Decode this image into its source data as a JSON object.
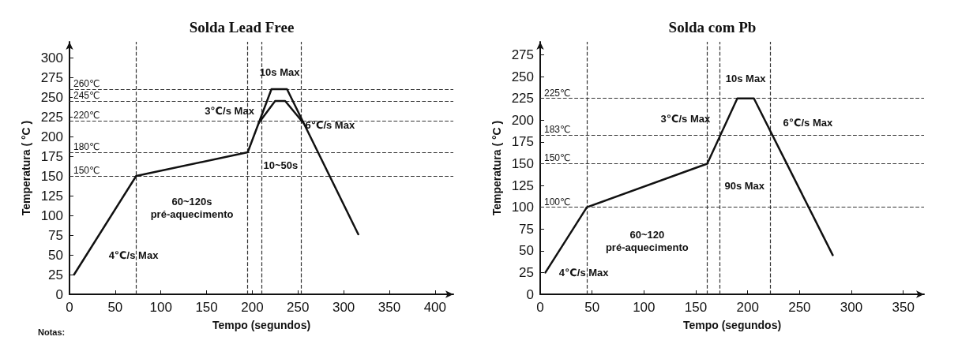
{
  "chart_data": [
    {
      "type": "line",
      "title": "Solda Lead Free",
      "xlabel": "Tempo (segundos)",
      "ylabel": "Temperatura ( °C )",
      "xlim": [
        0,
        420
      ],
      "xticks": [
        0,
        50,
        100,
        150,
        200,
        250,
        300,
        350,
        400
      ],
      "ylim": [
        0,
        320
      ],
      "yticks": [
        0,
        25,
        50,
        75,
        100,
        125,
        150,
        175,
        200,
        225,
        250,
        275,
        300
      ],
      "grid": false,
      "marker": "none",
      "line_style": "solid",
      "series": [
        {
          "color": "#111111",
          "x": [
            5,
            73,
            195,
            221,
            238,
            316
          ],
          "values": [
            25,
            150,
            180,
            260,
            260,
            76
          ]
        },
        {
          "color": "#111111",
          "x": [
            207,
            225,
            236,
            256
          ],
          "values": [
            217,
            245,
            245,
            217
          ]
        }
      ],
      "ref_lines": [
        {
          "axis": "y",
          "value": 260,
          "label": "260℃",
          "line_style": "dashed"
        },
        {
          "axis": "y",
          "value": 245,
          "label": "245℃",
          "line_style": "dashed"
        },
        {
          "axis": "y",
          "value": 220,
          "label": "220℃",
          "line_style": "dashed"
        },
        {
          "axis": "y",
          "value": 180,
          "label": "180℃",
          "line_style": "dashed"
        },
        {
          "axis": "y",
          "value": 150,
          "label": "150℃",
          "line_style": "dashed"
        },
        {
          "axis": "x",
          "value": 73,
          "label": null,
          "line_style": "dashed"
        },
        {
          "axis": "x",
          "value": 195,
          "label": null,
          "line_style": "dashed"
        },
        {
          "axis": "x",
          "value": 210,
          "label": null,
          "line_style": "dashed"
        },
        {
          "axis": "x",
          "value": 253,
          "label": null,
          "line_style": "dashed"
        }
      ],
      "annotations": [
        "10s Max",
        "3℃/s Max",
        "6℃/s Max",
        "10~50s",
        "60~120s",
        "pré-aquecimento",
        "4℃/s Max",
        "Notas:"
      ]
    },
    {
      "type": "line",
      "title": "Solda com Pb",
      "xlabel": "Tempo (segundos)",
      "ylabel": "Temperatura ( °C )",
      "xlim": [
        0,
        370
      ],
      "xticks": [
        0,
        50,
        100,
        150,
        200,
        250,
        300,
        350
      ],
      "ylim": [
        0,
        290
      ],
      "yticks": [
        0,
        25,
        50,
        75,
        100,
        125,
        150,
        175,
        200,
        225,
        250,
        275
      ],
      "grid": false,
      "marker": "none",
      "line_style": "solid",
      "series": [
        {
          "color": "#111111",
          "x": [
            5,
            45,
            161,
            190,
            206,
            282
          ],
          "values": [
            25,
            100,
            150,
            225,
            225,
            45
          ]
        }
      ],
      "ref_lines": [
        {
          "axis": "y",
          "value": 225,
          "label": "225℃",
          "line_style": "dashed"
        },
        {
          "axis": "y",
          "value": 183,
          "label": "183℃",
          "line_style": "dashed"
        },
        {
          "axis": "y",
          "value": 150,
          "label": "150℃",
          "line_style": "dashed"
        },
        {
          "axis": "y",
          "value": 100,
          "label": "100℃",
          "line_style": "dashed"
        },
        {
          "axis": "x",
          "value": 45,
          "label": null,
          "line_style": "dashed"
        },
        {
          "axis": "x",
          "value": 161,
          "label": null,
          "line_style": "dashed"
        },
        {
          "axis": "x",
          "value": 173,
          "label": null,
          "line_style": "dashed"
        },
        {
          "axis": "x",
          "value": 222,
          "label": null,
          "line_style": "dashed"
        }
      ],
      "annotations": [
        "10s Max",
        "3℃/s Max",
        "6℃/s Max",
        "90s Max",
        "60~120",
        "pré-aquecimento",
        "4℃/s Max"
      ]
    }
  ]
}
